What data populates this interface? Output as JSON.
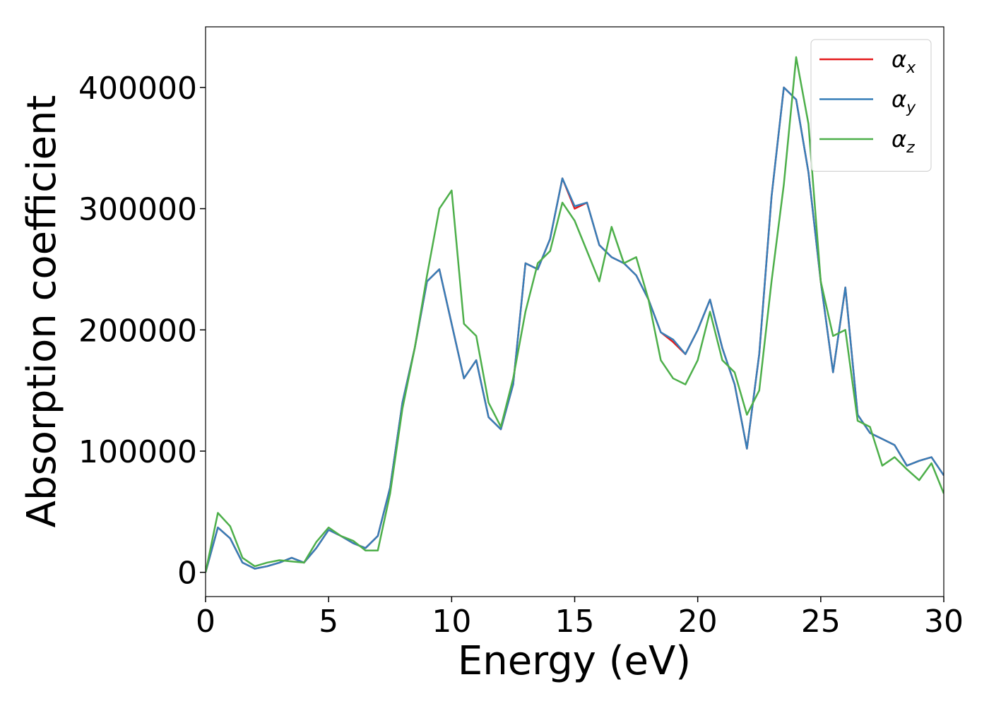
{
  "chart_data": {
    "type": "line",
    "x_label": "Energy (eV)",
    "y_label": "Absorption coefficient",
    "x": [
      0,
      0.5,
      1,
      1.5,
      2,
      2.5,
      3,
      3.5,
      4,
      4.5,
      5,
      5.5,
      6,
      6.5,
      7,
      7.5,
      8,
      8.5,
      9,
      9.5,
      10,
      10.5,
      11,
      11.5,
      12,
      12.5,
      13,
      13.5,
      14,
      14.5,
      15,
      15.5,
      16,
      16.5,
      17,
      17.5,
      18,
      18.5,
      19,
      19.5,
      20,
      20.5,
      21,
      21.5,
      22,
      22.5,
      23,
      23.5,
      24,
      24.5,
      25,
      25.5,
      26,
      26.5,
      27,
      27.5,
      28,
      28.5,
      29,
      29.5,
      30
    ],
    "series": [
      {
        "name": "αx",
        "color": "#e41a1c",
        "values": [
          0,
          37000,
          28000,
          8000,
          3000,
          5000,
          8000,
          12000,
          8000,
          20000,
          35000,
          30000,
          24000,
          20000,
          30000,
          70000,
          140000,
          185000,
          240000,
          250000,
          205000,
          160000,
          175000,
          128000,
          118000,
          155000,
          255000,
          250000,
          275000,
          325000,
          300000,
          305000,
          270000,
          260000,
          255000,
          245000,
          225000,
          198000,
          190000,
          180000,
          200000,
          225000,
          185000,
          155000,
          102000,
          180000,
          310000,
          400000,
          390000,
          330000,
          240000,
          165000,
          235000,
          130000,
          115000,
          110000,
          105000,
          88000,
          92000,
          95000,
          80000
        ]
      },
      {
        "name": "αy",
        "color": "#377eb8",
        "values": [
          0,
          37000,
          28000,
          8000,
          3000,
          5000,
          8000,
          12000,
          8000,
          20000,
          35000,
          30000,
          24000,
          20000,
          30000,
          70000,
          140000,
          185000,
          240000,
          250000,
          205000,
          160000,
          175000,
          128000,
          118000,
          155000,
          255000,
          250000,
          275000,
          325000,
          302000,
          305000,
          270000,
          260000,
          255000,
          245000,
          225000,
          198000,
          192000,
          180000,
          200000,
          225000,
          185000,
          155000,
          102000,
          180000,
          310000,
          400000,
          390000,
          330000,
          240000,
          165000,
          235000,
          130000,
          115000,
          110000,
          105000,
          88000,
          92000,
          95000,
          80000
        ]
      },
      {
        "name": "αz",
        "color": "#4daf4a",
        "values": [
          0,
          49000,
          38000,
          12000,
          5000,
          8000,
          10000,
          9000,
          8000,
          25000,
          37000,
          30000,
          26000,
          18000,
          18000,
          65000,
          135000,
          185000,
          245000,
          300000,
          315000,
          205000,
          195000,
          140000,
          120000,
          160000,
          215000,
          255000,
          265000,
          305000,
          290000,
          265000,
          240000,
          285000,
          255000,
          260000,
          225000,
          175000,
          160000,
          155000,
          175000,
          215000,
          175000,
          165000,
          130000,
          150000,
          240000,
          320000,
          425000,
          370000,
          240000,
          195000,
          200000,
          125000,
          120000,
          88000,
          95000,
          85000,
          76000,
          90000,
          65000
        ]
      }
    ],
    "xlim": [
      0,
      30
    ],
    "ylim": [
      -20000,
      450000
    ],
    "xticks": [
      0,
      5,
      10,
      15,
      20,
      25,
      30
    ],
    "yticks": [
      0,
      100000,
      200000,
      300000,
      400000
    ],
    "legend": "upper right"
  }
}
